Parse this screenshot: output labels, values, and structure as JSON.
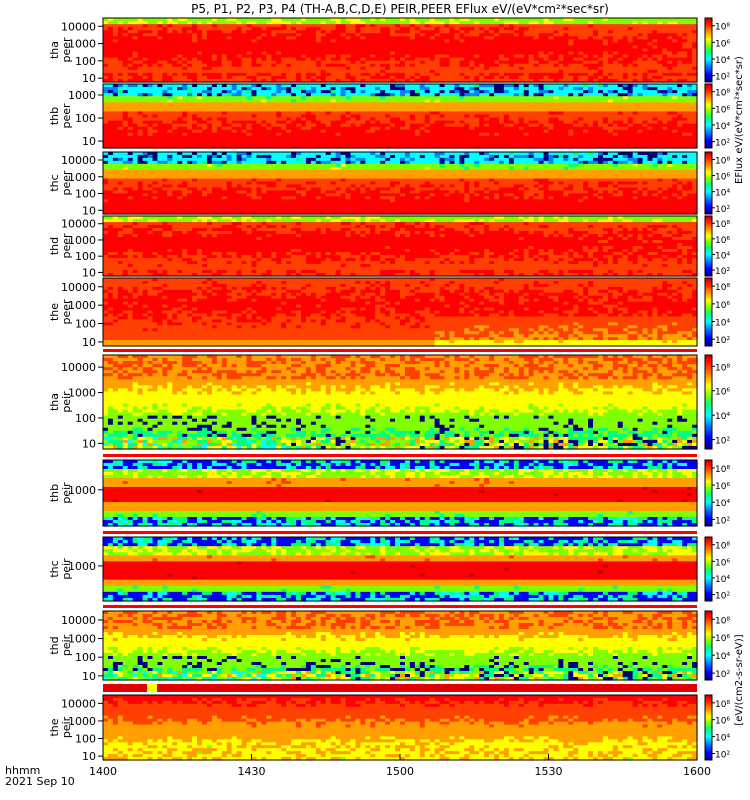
{
  "chart_data": {
    "type": "heatmap",
    "title": "P5, P1, P2, P3, P4 (TH-A,B,C,D,E) PEIR,PEER EFlux eV/(eV*cm²*sec*sr)",
    "x_label_1": "hhmm",
    "x_label_2": "2021 Sep 10",
    "x_ticks": [
      "1400",
      "1430",
      "1500",
      "1530",
      "1600"
    ],
    "x_range": [
      "14:00",
      "16:00"
    ],
    "colorbar_ticks": [
      "10⁸",
      "10⁶",
      "10⁴",
      "10²"
    ],
    "colorbar_label_top": "EFlux eV/(eV*cm²*sec*sr)",
    "colorbar_label_bottom": "[eV/(cm2-s-sr-eV)]",
    "y_scale": "log",
    "panels": [
      {
        "probe": "tha",
        "label_1": "tha",
        "label_2": "peer",
        "y_ticks": [
          "10000",
          "1000",
          "100",
          "10"
        ],
        "yrange": [
          6,
          30000
        ],
        "style": "peer_hot"
      },
      {
        "probe": "thb",
        "label_1": "thb",
        "label_2": "peer",
        "y_ticks": [
          "1000",
          "100",
          "10"
        ],
        "yrange": [
          5,
          3000
        ],
        "style": "peer_cold_top"
      },
      {
        "probe": "thc",
        "label_1": "thc",
        "label_2": "peer",
        "y_ticks": [
          "10000",
          "1000",
          "100",
          "10"
        ],
        "yrange": [
          6,
          30000
        ],
        "style": "peer_cold_top"
      },
      {
        "probe": "thd",
        "label_1": "thd",
        "label_2": "peer",
        "y_ticks": [
          "10000",
          "1000",
          "100",
          "10"
        ],
        "yrange": [
          6,
          30000
        ],
        "style": "peer_hot"
      },
      {
        "probe": "the",
        "label_1": "the",
        "label_2": "peer",
        "y_ticks": [
          "10000",
          "1000",
          "100",
          "10"
        ],
        "yrange": [
          6,
          30000
        ],
        "style": "peer_hot2"
      },
      {
        "probe": "tha",
        "label_1": "tha",
        "label_2": "peir",
        "y_ticks": [
          "10000",
          "1000",
          "100",
          "10"
        ],
        "yrange": [
          6,
          30000
        ],
        "style": "peir_noisy"
      },
      {
        "probe": "thb",
        "label_1": "thb",
        "label_2": "peir",
        "y_ticks": [
          "1000"
        ],
        "yrange": [
          80,
          8000
        ],
        "style": "peir_banded"
      },
      {
        "probe": "thc",
        "label_1": "thc",
        "label_2": "peir",
        "y_ticks": [
          "1000"
        ],
        "yrange": [
          80,
          8000
        ],
        "style": "peir_banded"
      },
      {
        "probe": "thd",
        "label_1": "thd",
        "label_2": "peir",
        "y_ticks": [
          "10000",
          "1000",
          "100",
          "10"
        ],
        "yrange": [
          6,
          30000
        ],
        "style": "peir_noisy"
      },
      {
        "probe": "the",
        "label_1": "the",
        "label_2": "peir",
        "y_ticks": [
          "10000",
          "1000",
          "100",
          "10"
        ],
        "yrange": [
          6,
          30000
        ],
        "style": "peir_smooth"
      }
    ],
    "colorscale": [
      "#000080",
      "#0000ff",
      "#0080ff",
      "#00ffff",
      "#00ff80",
      "#80ff00",
      "#ffff00",
      "#ffa000",
      "#ff4000",
      "#ff0000",
      "#c00000"
    ]
  }
}
